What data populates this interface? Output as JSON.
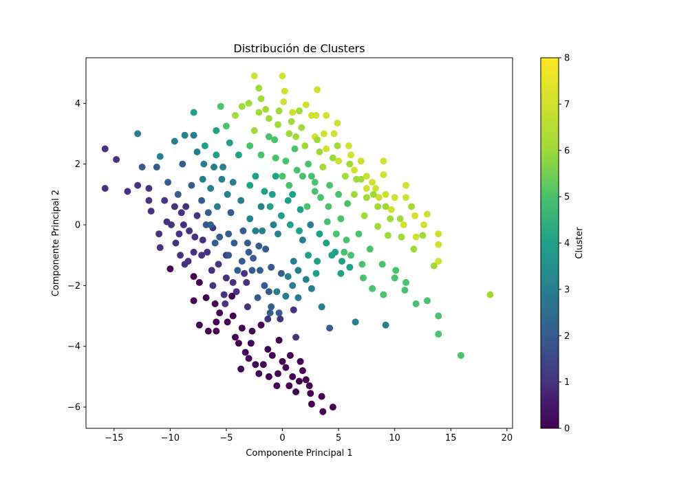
{
  "chart_data": {
    "type": "scatter",
    "title": "Distribución de Clusters",
    "xlabel": "Componente Principal 1",
    "ylabel": "Componente Principal 2",
    "xlim": [
      -17.5,
      20.5
    ],
    "ylim": [
      -6.7,
      5.5
    ],
    "xticks": [
      -15,
      -10,
      -5,
      0,
      5,
      10,
      15,
      20
    ],
    "xtick_labels": [
      "−15",
      "−10",
      "−5",
      "0",
      "5",
      "10",
      "15",
      "20"
    ],
    "yticks": [
      -6,
      -4,
      -2,
      0,
      2,
      4
    ],
    "ytick_labels": [
      "−6",
      "−4",
      "−2",
      "0",
      "2",
      "4"
    ],
    "grid": false,
    "colormap": "viridis",
    "colorbar": {
      "label": "Cluster",
      "range": [
        0,
        8
      ],
      "ticks": [
        0,
        1,
        2,
        3,
        4,
        5,
        6,
        7,
        8
      ],
      "tick_labels": [
        "0",
        "1",
        "2",
        "3",
        "4",
        "5",
        "6",
        "7",
        "8"
      ]
    },
    "points": [
      [
        -15.8,
        2.5,
        1
      ],
      [
        -14.8,
        2.15,
        1
      ],
      [
        -15.8,
        1.2,
        1
      ],
      [
        -13.8,
        1.1,
        1
      ],
      [
        -12.9,
        3.0,
        3
      ],
      [
        -12.5,
        1.9,
        2
      ],
      [
        -11.9,
        1.2,
        1
      ],
      [
        -11.2,
        1.9,
        2
      ],
      [
        -10.9,
        2.25,
        3
      ],
      [
        -11.7,
        0.45,
        1
      ],
      [
        -10.9,
        -0.75,
        1
      ],
      [
        -9.6,
        2.75,
        3
      ],
      [
        -10.5,
        0.8,
        1
      ],
      [
        -9.9,
        0.0,
        1
      ],
      [
        -9.2,
        -0.3,
        1
      ],
      [
        -10.0,
        -1.45,
        0
      ],
      [
        -8.7,
        2.95,
        3
      ],
      [
        -7.9,
        2.95,
        3
      ],
      [
        -7.9,
        3.7,
        4
      ],
      [
        -7.6,
        2.4,
        3
      ],
      [
        -8.1,
        1.3,
        2
      ],
      [
        -8.6,
        0.6,
        1
      ],
      [
        -7.9,
        -1.7,
        0
      ],
      [
        -7.4,
        -1.9,
        0
      ],
      [
        -7.9,
        -2.5,
        0
      ],
      [
        -7.1,
        1.5,
        3
      ],
      [
        -6.9,
        2.6,
        4
      ],
      [
        -6.6,
        0.4,
        2
      ],
      [
        -5.9,
        3.1,
        4
      ],
      [
        -5.5,
        3.9,
        5
      ],
      [
        -5.9,
        2.3,
        4
      ],
      [
        -5.3,
        1.9,
        3
      ],
      [
        -5.0,
        3.25,
        5
      ],
      [
        -4.9,
        1.0,
        3
      ],
      [
        -6.2,
        -0.1,
        1
      ],
      [
        -6.0,
        -2.6,
        0
      ],
      [
        -5.0,
        -1.0,
        1
      ],
      [
        -5.6,
        -2.9,
        0
      ],
      [
        -6.6,
        -3.5,
        0
      ],
      [
        -7.4,
        -3.3,
        0
      ],
      [
        -5.9,
        -3.2,
        0
      ],
      [
        -4.5,
        -2.35,
        0
      ],
      [
        -4.2,
        -3.7,
        0
      ],
      [
        -3.7,
        -4.75,
        0
      ],
      [
        -3.3,
        -4.2,
        0
      ],
      [
        -2.7,
        -3.5,
        0
      ],
      [
        -2.4,
        -4.6,
        0
      ],
      [
        -1.7,
        -4.6,
        0
      ],
      [
        -1.3,
        -4.1,
        0
      ],
      [
        -0.4,
        -4.9,
        0
      ],
      [
        0.6,
        -5.3,
        0
      ],
      [
        1.5,
        -5.15,
        0
      ],
      [
        2.5,
        -5.55,
        0
      ],
      [
        2.6,
        -5.9,
        0
      ],
      [
        3.5,
        -5.65,
        0
      ],
      [
        3.6,
        -6.15,
        0
      ],
      [
        4.5,
        -6.0,
        0
      ],
      [
        2.4,
        -5.3,
        0
      ],
      [
        1.6,
        -4.5,
        0
      ],
      [
        0.7,
        -4.3,
        0
      ],
      [
        -0.3,
        -3.8,
        0
      ],
      [
        1.2,
        -3.7,
        1
      ],
      [
        -2.5,
        4.9,
        7
      ],
      [
        -2.1,
        4.5,
        6
      ],
      [
        -1.9,
        4.15,
        6
      ],
      [
        -2.1,
        3.7,
        6
      ],
      [
        0.0,
        4.9,
        7
      ],
      [
        0.2,
        4.4,
        7
      ],
      [
        0.1,
        4.05,
        7
      ],
      [
        -0.3,
        3.75,
        6
      ],
      [
        0.9,
        3.7,
        7
      ],
      [
        1.5,
        3.75,
        6
      ],
      [
        2.1,
        3.95,
        7
      ],
      [
        3.1,
        4.45,
        7
      ],
      [
        3.0,
        3.6,
        7
      ],
      [
        3.9,
        3.6,
        7
      ],
      [
        4.9,
        3.35,
        7
      ],
      [
        2.9,
        2.9,
        7
      ],
      [
        3.7,
        3.0,
        7
      ],
      [
        4.6,
        3.0,
        7
      ],
      [
        5.9,
        2.6,
        7
      ],
      [
        6.1,
        2.3,
        7
      ],
      [
        7.0,
        2.1,
        7
      ],
      [
        7.5,
        1.6,
        7
      ],
      [
        8.0,
        1.4,
        7
      ],
      [
        9.0,
        2.1,
        7
      ],
      [
        9.0,
        1.65,
        7
      ],
      [
        8.3,
        1.2,
        7
      ],
      [
        9.2,
        1.0,
        7
      ],
      [
        10.0,
        0.9,
        7
      ],
      [
        11.0,
        1.3,
        7
      ],
      [
        11.0,
        0.9,
        7
      ],
      [
        11.8,
        0.3,
        7
      ],
      [
        12.6,
        0.0,
        7
      ],
      [
        12.9,
        0.35,
        7
      ],
      [
        13.9,
        -0.3,
        7
      ],
      [
        13.9,
        -0.65,
        7
      ],
      [
        13.9,
        -1.2,
        7
      ],
      [
        13.5,
        -1.35,
        6
      ],
      [
        12.5,
        -0.35,
        6
      ],
      [
        11.5,
        0.6,
        6
      ],
      [
        10.5,
        0.2,
        6
      ],
      [
        9.4,
        -0.35,
        6
      ],
      [
        8.5,
        -0.05,
        6
      ],
      [
        7.3,
        0.3,
        6
      ],
      [
        6.4,
        1.0,
        6
      ],
      [
        5.6,
        1.6,
        6
      ],
      [
        4.5,
        2.2,
        6
      ],
      [
        3.3,
        2.4,
        6
      ],
      [
        2.0,
        2.6,
        6
      ],
      [
        1.2,
        2.9,
        6
      ],
      [
        0.8,
        3.4,
        6
      ],
      [
        -0.4,
        3.3,
        6
      ],
      [
        -1.2,
        3.5,
        6
      ],
      [
        -2.5,
        3.1,
        6
      ],
      [
        -3.6,
        3.9,
        6
      ],
      [
        -4.2,
        3.6,
        6
      ],
      [
        -2.9,
        2.6,
        5
      ],
      [
        -1.2,
        2.9,
        5
      ],
      [
        -0.6,
        2.2,
        5
      ],
      [
        -0.9,
        1.0,
        4
      ],
      [
        0.6,
        1.3,
        5
      ],
      [
        1.8,
        1.6,
        5
      ],
      [
        2.9,
        1.1,
        5
      ],
      [
        4.1,
        0.6,
        5
      ],
      [
        5.2,
        0.2,
        5
      ],
      [
        5.7,
        -0.5,
        5
      ],
      [
        6.1,
        -1.0,
        5
      ],
      [
        7.1,
        -1.3,
        5
      ],
      [
        7.2,
        -1.75,
        5
      ],
      [
        8.0,
        -2.1,
        5
      ],
      [
        9.0,
        -2.3,
        5
      ],
      [
        10.0,
        -1.75,
        5
      ],
      [
        10.9,
        -2.15,
        5
      ],
      [
        11.9,
        -2.6,
        5
      ],
      [
        12.9,
        -2.5,
        5
      ],
      [
        13.9,
        -3.0,
        5
      ],
      [
        13.9,
        -3.6,
        5
      ],
      [
        15.9,
        -4.3,
        5
      ],
      [
        18.5,
        -2.3,
        6
      ],
      [
        9.2,
        -3.3,
        3
      ],
      [
        6.5,
        -3.2,
        3
      ],
      [
        4.2,
        -3.4,
        2
      ],
      [
        3.5,
        -2.7,
        3
      ],
      [
        2.6,
        -2.1,
        3
      ],
      [
        1.4,
        -2.4,
        3
      ],
      [
        0.3,
        -2.35,
        3
      ],
      [
        -1.0,
        -2.7,
        2
      ],
      [
        -1.1,
        -2.9,
        2
      ],
      [
        -2.2,
        -2.4,
        2
      ],
      [
        -3.2,
        -1.9,
        1
      ],
      [
        -4.1,
        -2.2,
        1
      ],
      [
        -5.0,
        -1.75,
        1
      ],
      [
        -5.7,
        -1.3,
        1
      ],
      [
        -6.7,
        -0.9,
        1
      ],
      [
        -7.8,
        -0.4,
        1
      ],
      [
        -8.8,
        0.0,
        1
      ],
      [
        -9.6,
        0.6,
        1
      ],
      [
        -11.9,
        0.8,
        1
      ],
      [
        -12.9,
        1.3,
        1
      ],
      [
        -9.1,
        -1.0,
        1
      ],
      [
        -8.4,
        -1.2,
        1
      ],
      [
        -7.2,
        -1.0,
        1
      ],
      [
        -6.0,
        -0.6,
        2
      ],
      [
        -4.3,
        -0.6,
        2
      ],
      [
        -3.0,
        -0.9,
        2
      ],
      [
        -2.1,
        -0.7,
        2
      ],
      [
        -1.0,
        -1.4,
        2
      ],
      [
        -0.1,
        -1.6,
        2
      ],
      [
        1.0,
        -1.2,
        3
      ],
      [
        1.8,
        -0.5,
        3
      ],
      [
        2.5,
        0.0,
        3
      ],
      [
        3.3,
        -0.3,
        4
      ],
      [
        3.9,
        -0.6,
        4
      ],
      [
        4.7,
        -0.9,
        4
      ],
      [
        5.3,
        -1.2,
        4
      ],
      [
        6.0,
        -1.4,
        4
      ],
      [
        3.0,
        -1.6,
        4
      ],
      [
        2.1,
        -1.8,
        3
      ],
      [
        0.9,
        -2.0,
        3
      ],
      [
        -0.5,
        -2.2,
        3
      ],
      [
        -1.6,
        -2.0,
        2
      ],
      [
        -2.7,
        -1.5,
        2
      ],
      [
        -3.6,
        -1.2,
        2
      ],
      [
        -4.8,
        -0.3,
        2
      ],
      [
        -5.8,
        0.6,
        3
      ],
      [
        -6.4,
        1.2,
        3
      ],
      [
        -7.2,
        0.8,
        2
      ],
      [
        -4.4,
        1.4,
        3
      ],
      [
        -3.7,
        0.8,
        3
      ],
      [
        -2.9,
        0.2,
        3
      ],
      [
        -1.8,
        -0.2,
        3
      ],
      [
        -1.1,
        0.6,
        4
      ],
      [
        -0.1,
        0.3,
        4
      ],
      [
        0.7,
        0.0,
        4
      ],
      [
        1.5,
        -0.2,
        4
      ],
      [
        2.2,
        0.6,
        5
      ],
      [
        2.9,
        1.4,
        5
      ],
      [
        3.6,
        1.9,
        6
      ],
      [
        4.2,
        1.3,
        5
      ],
      [
        5.0,
        1.0,
        5
      ],
      [
        5.8,
        0.7,
        5
      ],
      [
        6.6,
        1.5,
        6
      ],
      [
        7.5,
        0.9,
        6
      ],
      [
        8.5,
        0.6,
        6
      ],
      [
        9.6,
        0.2,
        6
      ],
      [
        10.6,
        -0.4,
        6
      ],
      [
        11.7,
        -0.8,
        6
      ],
      [
        -2.4,
        1.6,
        4
      ],
      [
        -1.6,
        1.1,
        4
      ],
      [
        -0.6,
        1.6,
        4
      ],
      [
        0.3,
        2.1,
        5
      ],
      [
        1.1,
        2.5,
        5
      ],
      [
        2.3,
        2.0,
        5
      ],
      [
        3.1,
        2.8,
        6
      ],
      [
        0.5,
        0.8,
        4
      ],
      [
        -0.4,
        -0.3,
        3
      ],
      [
        -3.5,
        -0.2,
        2
      ],
      [
        -4.6,
        0.4,
        2
      ],
      [
        -5.4,
        1.5,
        3
      ],
      [
        -6.1,
        1.9,
        3
      ],
      [
        -6.8,
        0.0,
        2
      ],
      [
        -7.6,
        0.3,
        1
      ],
      [
        -8.3,
        -0.2,
        1
      ],
      [
        -6.3,
        -1.5,
        1
      ],
      [
        -5.2,
        -2.3,
        1
      ],
      [
        -4.4,
        -3.0,
        0
      ],
      [
        -3.6,
        -3.4,
        0
      ],
      [
        -2.8,
        -3.9,
        0
      ],
      [
        -1.9,
        -3.3,
        0
      ],
      [
        -0.9,
        -4.3,
        0
      ],
      [
        0.0,
        -4.5,
        0
      ],
      [
        0.9,
        -5.0,
        0
      ],
      [
        1.8,
        -4.8,
        0
      ],
      [
        1.0,
        -2.8,
        1
      ],
      [
        -0.2,
        -3.1,
        1
      ],
      [
        -1.3,
        -3.1,
        1
      ],
      [
        -3.1,
        -2.7,
        1
      ],
      [
        -6.8,
        -2.4,
        0
      ],
      [
        -6.2,
        -2.0,
        1
      ],
      [
        -9.3,
        1.0,
        2
      ],
      [
        -10.2,
        1.4,
        2
      ],
      [
        -8.9,
        2.0,
        2
      ],
      [
        -7.0,
        2.0,
        3
      ],
      [
        3.9,
        2.5,
        7
      ],
      [
        5.0,
        2.1,
        7
      ],
      [
        6.4,
        1.8,
        7
      ],
      [
        7.5,
        1.2,
        7
      ],
      [
        8.6,
        0.9,
        7
      ],
      [
        9.7,
        0.5,
        7
      ],
      [
        10.8,
        0.0,
        7
      ],
      [
        11.9,
        -0.4,
        7
      ],
      [
        4.9,
        2.6,
        6
      ],
      [
        6.0,
        2.0,
        6
      ],
      [
        7.0,
        1.5,
        6
      ],
      [
        8.1,
        1.0,
        6
      ],
      [
        9.2,
        0.6,
        6
      ],
      [
        6.8,
        -0.3,
        5
      ],
      [
        7.8,
        -0.8,
        5
      ],
      [
        8.9,
        -1.3,
        5
      ],
      [
        10.1,
        -1.5,
        5
      ],
      [
        11.0,
        -1.9,
        5
      ],
      [
        4.4,
        -1.0,
        4
      ],
      [
        5.2,
        -1.6,
        4
      ],
      [
        3.1,
        -1.2,
        4
      ],
      [
        -1.9,
        2.3,
        5
      ],
      [
        -0.7,
        2.8,
        5
      ],
      [
        0.6,
        3.0,
        6
      ],
      [
        1.7,
        3.2,
        6
      ],
      [
        2.6,
        3.6,
        7
      ],
      [
        -1.5,
        3.8,
        6
      ],
      [
        -3.0,
        4.0,
        6
      ],
      [
        -4.7,
        2.7,
        4
      ],
      [
        -3.9,
        2.3,
        4
      ],
      [
        -2.9,
        1.3,
        4
      ],
      [
        -1.9,
        0.6,
        3
      ],
      [
        -2.4,
        -0.2,
        3
      ],
      [
        -3.1,
        -0.6,
        2
      ],
      [
        -4.0,
        -1.5,
        2
      ],
      [
        -4.8,
        -1.0,
        2
      ],
      [
        -5.6,
        -0.4,
        2
      ],
      [
        -6.4,
        0.0,
        2
      ],
      [
        -7.1,
        -0.5,
        1
      ],
      [
        -7.9,
        -0.9,
        1
      ],
      [
        -8.7,
        -1.3,
        1
      ],
      [
        -9.5,
        -0.6,
        1
      ],
      [
        -10.3,
        0.1,
        1
      ],
      [
        -11.0,
        -0.3,
        1
      ],
      [
        -9.0,
        0.4,
        1
      ],
      [
        -2.0,
        -1.5,
        2
      ],
      [
        -1.2,
        -2.2,
        2
      ],
      [
        -0.3,
        -2.9,
        2
      ],
      [
        0.5,
        -1.7,
        3
      ],
      [
        1.4,
        -1.5,
        3
      ],
      [
        2.3,
        -1.0,
        4
      ],
      [
        1.6,
        0.5,
        4
      ],
      [
        0.9,
        1.0,
        4
      ],
      [
        0.0,
        1.6,
        5
      ],
      [
        1.3,
        1.8,
        5
      ],
      [
        2.6,
        1.6,
        5
      ],
      [
        3.4,
        0.9,
        5
      ],
      [
        4.0,
        0.1,
        5
      ],
      [
        4.8,
        -0.3,
        5
      ],
      [
        5.5,
        -0.9,
        5
      ],
      [
        -0.8,
        0.0,
        3
      ],
      [
        -1.5,
        -0.8,
        2
      ],
      [
        -2.6,
        -1.1,
        2
      ],
      [
        -3.4,
        -1.6,
        1
      ],
      [
        -4.4,
        -1.9,
        1
      ],
      [
        -5.1,
        -2.6,
        1
      ],
      [
        -5.9,
        -3.5,
        0
      ],
      [
        -4.9,
        -3.2,
        0
      ],
      [
        -3.9,
        -3.9,
        0
      ],
      [
        -3.0,
        -4.4,
        0
      ],
      [
        -2.1,
        -4.9,
        0
      ],
      [
        -1.2,
        -5.0,
        0
      ],
      [
        -0.5,
        -5.3,
        0
      ],
      [
        0.3,
        -4.7,
        0
      ],
      [
        1.2,
        -5.5,
        0
      ],
      [
        2.1,
        -5.1,
        0
      ]
    ]
  }
}
